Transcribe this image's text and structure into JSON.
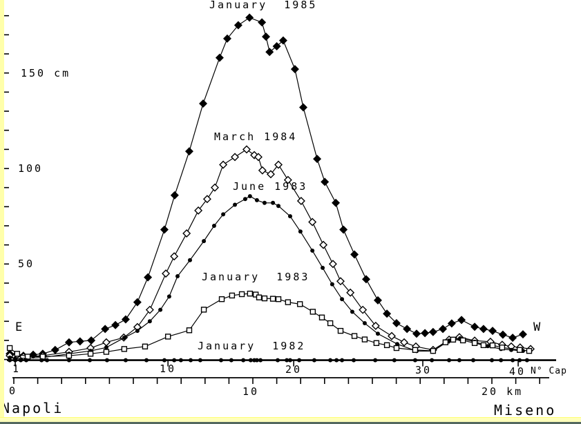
{
  "chart_data": {
    "type": "line",
    "title": "",
    "ylabel": "cm",
    "xlabel": "km",
    "legend_position": "labels-on-curves",
    "grid": false,
    "y_axis": {
      "unit": "cm",
      "tick_labels": [
        "150 cm",
        "100",
        "50"
      ],
      "tick_values_cm": [
        150,
        100,
        50
      ],
      "minor_tick_step_cm": 10,
      "range_cm": [
        0,
        180
      ]
    },
    "x_axis_benchmarks": {
      "label": "N° Cap",
      "tick_labels": [
        "1",
        "10",
        "20",
        "30",
        "40"
      ],
      "tick_positions_km": [
        0.06,
        6.45,
        11.71,
        17.11,
        21.1
      ]
    },
    "x_axis_km": {
      "tick_labels": [
        "0",
        "10",
        "20 km"
      ],
      "tick_values_km": [
        0,
        10,
        20
      ],
      "tick_step_km": 1,
      "range_km": [
        0,
        22
      ]
    },
    "end_labels": {
      "left": "E",
      "right": "W",
      "left_city": "Napoli",
      "right_city": "Miseno"
    },
    "series": [
      {
        "label": "January  1985",
        "marker": "filled-diamond",
        "points_km_cm": [
          [
            -0.17,
            3
          ],
          [
            0.06,
            2
          ],
          [
            0.4,
            2
          ],
          [
            0.81,
            2.5
          ],
          [
            1.21,
            3
          ],
          [
            1.73,
            5
          ],
          [
            2.31,
            9
          ],
          [
            2.77,
            9.5
          ],
          [
            3.24,
            10
          ],
          [
            3.82,
            16
          ],
          [
            4.25,
            18
          ],
          [
            4.68,
            21
          ],
          [
            5.17,
            30
          ],
          [
            5.61,
            43
          ],
          [
            6.3,
            68
          ],
          [
            6.73,
            86
          ],
          [
            7.34,
            109
          ],
          [
            7.92,
            134
          ],
          [
            8.61,
            158
          ],
          [
            8.93,
            168
          ],
          [
            9.39,
            175
          ],
          [
            9.86,
            179
          ],
          [
            10.38,
            176.5
          ],
          [
            10.55,
            169
          ],
          [
            10.7,
            161
          ],
          [
            11.0,
            164
          ],
          [
            11.27,
            167
          ],
          [
            11.76,
            152
          ],
          [
            12.11,
            132
          ],
          [
            12.69,
            105
          ],
          [
            13.01,
            93
          ],
          [
            13.47,
            82
          ],
          [
            13.79,
            68
          ],
          [
            14.25,
            55
          ],
          [
            14.74,
            42
          ],
          [
            15.23,
            31
          ],
          [
            15.61,
            24
          ],
          [
            16.01,
            19
          ],
          [
            16.45,
            16
          ],
          [
            16.85,
            13.5
          ],
          [
            17.2,
            13.8
          ],
          [
            17.54,
            14.4
          ],
          [
            17.95,
            16
          ],
          [
            18.32,
            18.9
          ],
          [
            18.73,
            20.7
          ],
          [
            19.28,
            17.1
          ],
          [
            19.65,
            16
          ],
          [
            20.03,
            15
          ],
          [
            20.46,
            13
          ],
          [
            20.87,
            11.4
          ],
          [
            21.3,
            13.2
          ]
        ]
      },
      {
        "label": "March 1984",
        "marker": "open-diamond",
        "points_km_cm": [
          [
            -0.17,
            2
          ],
          [
            0.06,
            1.5
          ],
          [
            0.4,
            1.5
          ],
          [
            1.21,
            2
          ],
          [
            2.31,
            4
          ],
          [
            3.21,
            6
          ],
          [
            3.87,
            9
          ],
          [
            4.6,
            11.5
          ],
          [
            5.17,
            17
          ],
          [
            5.69,
            26
          ],
          [
            6.36,
            45
          ],
          [
            6.71,
            54
          ],
          [
            7.23,
            66
          ],
          [
            7.72,
            78
          ],
          [
            8.09,
            84
          ],
          [
            8.41,
            90
          ],
          [
            8.76,
            102
          ],
          [
            9.25,
            106
          ],
          [
            9.74,
            110
          ],
          [
            10.06,
            107
          ],
          [
            10.23,
            106
          ],
          [
            10.4,
            99
          ],
          [
            10.75,
            97
          ],
          [
            11.07,
            102
          ],
          [
            11.47,
            94
          ],
          [
            12.02,
            83
          ],
          [
            12.49,
            72
          ],
          [
            12.95,
            60
          ],
          [
            13.35,
            50
          ],
          [
            13.67,
            41
          ],
          [
            14.08,
            35
          ],
          [
            14.6,
            26
          ],
          [
            15.14,
            17.6
          ],
          [
            15.81,
            12.3
          ],
          [
            16.33,
            9
          ],
          [
            16.82,
            6.8
          ],
          [
            17.54,
            5
          ],
          [
            18.21,
            10.4
          ],
          [
            18.64,
            11.7
          ],
          [
            19.28,
            9.9
          ],
          [
            19.94,
            9.3
          ],
          [
            20.43,
            7.7
          ],
          [
            20.81,
            6.8
          ],
          [
            21.18,
            6.3
          ],
          [
            21.62,
            5.5
          ]
        ]
      },
      {
        "label": "June 1983",
        "marker": "filled-dot",
        "points_km_cm": [
          [
            -0.17,
            1
          ],
          [
            0.06,
            0.5
          ],
          [
            1.21,
            1
          ],
          [
            2.31,
            3
          ],
          [
            3.21,
            4.5
          ],
          [
            3.87,
            6.3
          ],
          [
            4.62,
            11.4
          ],
          [
            5.17,
            15
          ],
          [
            5.69,
            20
          ],
          [
            6.13,
            26
          ],
          [
            6.5,
            33
          ],
          [
            6.85,
            43.6
          ],
          [
            7.37,
            52
          ],
          [
            7.95,
            62
          ],
          [
            8.38,
            70
          ],
          [
            8.76,
            76
          ],
          [
            9.25,
            81
          ],
          [
            9.68,
            84
          ],
          [
            9.88,
            85.5
          ],
          [
            10.17,
            83.4
          ],
          [
            10.49,
            82
          ],
          [
            10.84,
            82
          ],
          [
            11.07,
            80.4
          ],
          [
            11.56,
            75
          ],
          [
            11.99,
            67
          ],
          [
            12.49,
            57
          ],
          [
            12.92,
            48
          ],
          [
            13.32,
            39.4
          ],
          [
            13.73,
            31.6
          ],
          [
            14.16,
            25
          ],
          [
            14.68,
            19
          ],
          [
            15.23,
            13.5
          ],
          [
            16.04,
            8.1
          ],
          [
            16.85,
            4.4
          ],
          [
            17.54,
            4.4
          ],
          [
            18.21,
            9.9
          ],
          [
            18.67,
            11.1
          ],
          [
            19.28,
            9.3
          ],
          [
            19.83,
            7
          ],
          [
            20.38,
            5.5
          ],
          [
            20.81,
            5
          ],
          [
            21.3,
            4.5
          ]
        ]
      },
      {
        "label": "January  1983",
        "marker": "open-square",
        "points_km_cm": [
          [
            -0.17,
            6
          ],
          [
            0.14,
            3
          ],
          [
            0.58,
            1.5
          ],
          [
            1.21,
            1.5
          ],
          [
            2.31,
            2
          ],
          [
            3.21,
            3
          ],
          [
            3.87,
            4
          ],
          [
            4.62,
            5.5
          ],
          [
            5.49,
            6.8
          ],
          [
            6.45,
            12
          ],
          [
            7.34,
            15.3
          ],
          [
            7.95,
            26.1
          ],
          [
            8.7,
            31.6
          ],
          [
            9.13,
            33.5
          ],
          [
            9.54,
            34.2
          ],
          [
            9.88,
            34.5
          ],
          [
            10.12,
            34
          ],
          [
            10.26,
            32.5
          ],
          [
            10.49,
            32
          ],
          [
            10.84,
            31.8
          ],
          [
            11.07,
            31.6
          ],
          [
            11.47,
            30
          ],
          [
            11.97,
            29
          ],
          [
            12.51,
            25
          ],
          [
            12.89,
            22
          ],
          [
            13.24,
            19
          ],
          [
            13.67,
            15
          ],
          [
            14.25,
            12.3
          ],
          [
            14.68,
            10.5
          ],
          [
            15.17,
            8.6
          ],
          [
            15.61,
            7.5
          ],
          [
            16.01,
            6
          ],
          [
            16.79,
            5
          ],
          [
            17.54,
            4.5
          ],
          [
            18.06,
            9
          ],
          [
            18.38,
            10.4
          ],
          [
            18.79,
            10
          ],
          [
            19.28,
            8.6
          ],
          [
            19.65,
            7.5
          ],
          [
            20.03,
            7.4
          ],
          [
            20.43,
            6.3
          ],
          [
            21.16,
            5
          ],
          [
            21.56,
            4.5
          ]
        ]
      },
      {
        "label": "January  1982",
        "marker": "filled-dot-small",
        "baseline_cm": 0,
        "points_km_cm": [
          [
            -0.17,
            0
          ],
          [
            0.06,
            0
          ],
          [
            0.29,
            0
          ],
          [
            0.52,
            0
          ],
          [
            1.16,
            0
          ],
          [
            1.39,
            0
          ],
          [
            2.31,
            0
          ],
          [
            3.18,
            0
          ],
          [
            3.9,
            0
          ],
          [
            4.68,
            0
          ],
          [
            5.55,
            0
          ],
          [
            6.3,
            0
          ],
          [
            6.71,
            0
          ],
          [
            6.99,
            0
          ],
          [
            7.4,
            0
          ],
          [
            7.8,
            0
          ],
          [
            8.67,
            0
          ],
          [
            9.1,
            0
          ],
          [
            9.6,
            0
          ],
          [
            9.91,
            0
          ],
          [
            10.06,
            0
          ],
          [
            10.17,
            0
          ],
          [
            10.32,
            0
          ],
          [
            11.04,
            0
          ],
          [
            11.42,
            0
          ],
          [
            11.56,
            0
          ],
          [
            11.94,
            0
          ],
          [
            12.57,
            0
          ],
          [
            13.24,
            0
          ],
          [
            13.5,
            0
          ],
          [
            13.73,
            0
          ],
          [
            14.22,
            0
          ],
          [
            15.12,
            0
          ],
          [
            15.92,
            0
          ],
          [
            16.79,
            0
          ],
          [
            17.49,
            0
          ],
          [
            18.21,
            0
          ],
          [
            18.64,
            0
          ],
          [
            19.22,
            0
          ],
          [
            20.0,
            0
          ],
          [
            20.38,
            0
          ],
          [
            20.87,
            0
          ],
          [
            21.16,
            0
          ],
          [
            21.47,
            0
          ]
        ]
      }
    ]
  },
  "page": {
    "background_color": "#ffffff",
    "line_color": "#000000",
    "left_border_color": "#ffffaa",
    "bottom_border_color": "#ffffbb",
    "bottom_edge_line_color": "#53685f"
  }
}
